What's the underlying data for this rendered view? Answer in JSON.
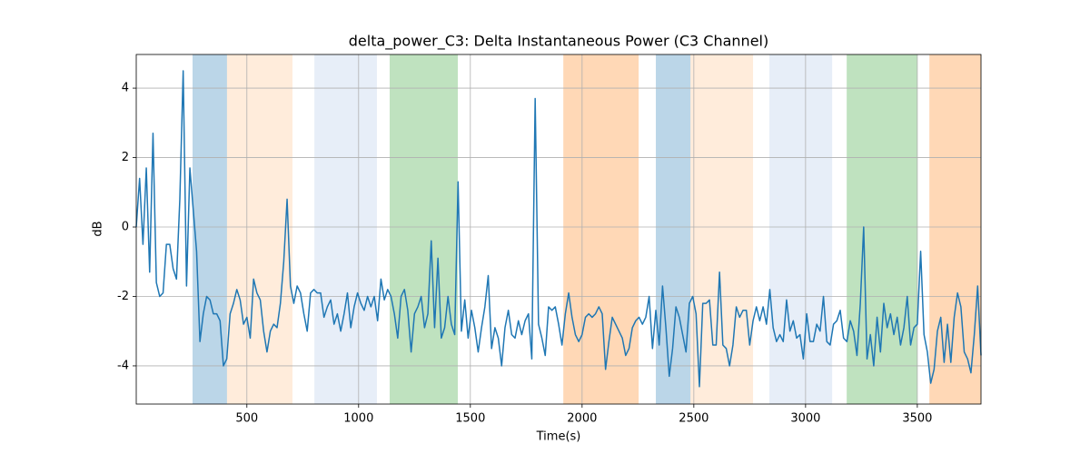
{
  "chart_data": {
    "type": "line",
    "title": "delta_power_C3: Delta Instantaneous Power (C3 Channel)",
    "xlabel": "Time(s)",
    "ylabel": "dB",
    "xlim": [
      5,
      3785
    ],
    "ylim": [
      -5.1,
      4.97
    ],
    "xticks": [
      500,
      1000,
      1500,
      2000,
      2500,
      3000,
      3500
    ],
    "yticks": [
      -4,
      -2,
      0,
      2,
      4
    ],
    "grid": true,
    "spans": [
      {
        "start": 257,
        "end": 411,
        "color": "#1f77b4",
        "opacity": 0.3
      },
      {
        "start": 411,
        "end": 704,
        "color": "#ff7f0e",
        "opacity": 0.15
      },
      {
        "start": 802,
        "end": 1082,
        "color": "#aec7e8",
        "opacity": 0.3
      },
      {
        "start": 1139,
        "end": 1444,
        "color": "#2ca02c",
        "opacity": 0.3
      },
      {
        "start": 1916,
        "end": 2253,
        "color": "#ff7f0e",
        "opacity": 0.3
      },
      {
        "start": 2330,
        "end": 2485,
        "color": "#1f77b4",
        "opacity": 0.3
      },
      {
        "start": 2485,
        "end": 2765,
        "color": "#ff7f0e",
        "opacity": 0.15
      },
      {
        "start": 2838,
        "end": 3119,
        "color": "#aec7e8",
        "opacity": 0.3
      },
      {
        "start": 3184,
        "end": 3501,
        "color": "#2ca02c",
        "opacity": 0.3
      },
      {
        "start": 3554,
        "end": 3785,
        "color": "#ff7f0e",
        "opacity": 0.3
      }
    ],
    "x": [
      5,
      20,
      35,
      50,
      65,
      80,
      95,
      110,
      125,
      140,
      155,
      170,
      185,
      200,
      215,
      230,
      245,
      260,
      275,
      290,
      305,
      320,
      335,
      350,
      365,
      380,
      395,
      410,
      425,
      440,
      455,
      470,
      485,
      500,
      515,
      530,
      545,
      560,
      575,
      590,
      605,
      620,
      635,
      650,
      665,
      680,
      695,
      710,
      725,
      740,
      755,
      770,
      785,
      800,
      815,
      830,
      845,
      860,
      875,
      890,
      905,
      920,
      935,
      950,
      965,
      980,
      995,
      1010,
      1025,
      1040,
      1055,
      1070,
      1085,
      1100,
      1115,
      1130,
      1145,
      1160,
      1175,
      1190,
      1205,
      1220,
      1235,
      1250,
      1265,
      1280,
      1295,
      1310,
      1325,
      1340,
      1355,
      1370,
      1385,
      1400,
      1415,
      1430,
      1445,
      1460,
      1475,
      1490,
      1505,
      1520,
      1535,
      1550,
      1565,
      1580,
      1595,
      1610,
      1625,
      1640,
      1655,
      1670,
      1685,
      1700,
      1715,
      1730,
      1745,
      1760,
      1775,
      1790,
      1805,
      1820,
      1835,
      1850,
      1865,
      1880,
      1895,
      1910,
      1925,
      1940,
      1955,
      1970,
      1985,
      2000,
      2015,
      2030,
      2045,
      2060,
      2075,
      2090,
      2105,
      2120,
      2135,
      2150,
      2165,
      2180,
      2195,
      2210,
      2225,
      2240,
      2255,
      2270,
      2285,
      2300,
      2315,
      2330,
      2345,
      2360,
      2375,
      2390,
      2405,
      2420,
      2435,
      2450,
      2465,
      2480,
      2495,
      2510,
      2525,
      2540,
      2555,
      2570,
      2585,
      2600,
      2615,
      2630,
      2645,
      2660,
      2675,
      2690,
      2705,
      2720,
      2735,
      2750,
      2765,
      2780,
      2795,
      2810,
      2825,
      2840,
      2855,
      2870,
      2885,
      2900,
      2915,
      2930,
      2945,
      2960,
      2975,
      2990,
      3005,
      3020,
      3035,
      3050,
      3065,
      3080,
      3095,
      3110,
      3125,
      3140,
      3155,
      3170,
      3185,
      3200,
      3215,
      3230,
      3245,
      3260,
      3275,
      3290,
      3305,
      3320,
      3335,
      3350,
      3365,
      3380,
      3395,
      3410,
      3425,
      3440,
      3455,
      3470,
      3485,
      3500,
      3515,
      3530,
      3545,
      3560,
      3575,
      3590,
      3605,
      3620,
      3635,
      3650,
      3665,
      3680,
      3695,
      3710,
      3725,
      3740,
      3755,
      3770,
      3785
    ],
    "series": [
      {
        "color": "#1f77b4",
        "values": [
          0.0,
          1.4,
          -0.5,
          1.7,
          -1.3,
          2.7,
          -1.6,
          -2.0,
          -1.9,
          -0.5,
          -0.5,
          -1.2,
          -1.5,
          0.8,
          4.5,
          -1.7,
          1.7,
          0.5,
          -0.7,
          -3.3,
          -2.5,
          -2.0,
          -2.1,
          -2.5,
          -2.5,
          -2.7,
          -4.0,
          -3.8,
          -2.5,
          -2.2,
          -1.8,
          -2.1,
          -2.8,
          -2.6,
          -3.2,
          -1.5,
          -1.9,
          -2.1,
          -3.0,
          -3.6,
          -3.0,
          -2.8,
          -2.9,
          -2.2,
          -1.0,
          0.8,
          -1.7,
          -2.2,
          -1.7,
          -1.9,
          -2.5,
          -3.0,
          -1.9,
          -1.8,
          -1.9,
          -1.9,
          -2.6,
          -2.3,
          -2.1,
          -2.8,
          -2.5,
          -3.0,
          -2.5,
          -1.9,
          -2.9,
          -2.3,
          -1.9,
          -2.2,
          -2.4,
          -2.0,
          -2.3,
          -2.0,
          -2.7,
          -1.5,
          -2.1,
          -1.8,
          -2.0,
          -2.5,
          -3.2,
          -2.0,
          -1.8,
          -2.4,
          -3.6,
          -2.5,
          -2.3,
          -2.0,
          -2.9,
          -2.5,
          -0.4,
          -2.9,
          -0.9,
          -3.2,
          -2.9,
          -2.0,
          -2.8,
          -3.1,
          1.3,
          -3.0,
          -2.1,
          -3.2,
          -2.4,
          -2.9,
          -3.6,
          -2.9,
          -2.3,
          -1.4,
          -3.5,
          -2.9,
          -3.2,
          -4.0,
          -2.9,
          -2.4,
          -3.1,
          -3.2,
          -2.7,
          -3.1,
          -2.7,
          -2.5,
          -3.8,
          3.7,
          -2.8,
          -3.2,
          -3.7,
          -2.3,
          -2.4,
          -2.3,
          -2.8,
          -3.4,
          -2.5,
          -1.9,
          -2.6,
          -3.1,
          -3.3,
          -3.1,
          -2.6,
          -2.5,
          -2.6,
          -2.5,
          -2.3,
          -2.5,
          -4.1,
          -3.3,
          -2.6,
          -2.8,
          -3.0,
          -3.2,
          -3.7,
          -3.5,
          -2.9,
          -2.7,
          -2.6,
          -2.8,
          -2.6,
          -2.0,
          -3.5,
          -2.4,
          -3.4,
          -1.7,
          -2.9,
          -4.3,
          -3.5,
          -2.3,
          -2.6,
          -3.1,
          -3.6,
          -2.2,
          -2.0,
          -2.5,
          -4.6,
          -2.2,
          -2.2,
          -2.1,
          -3.4,
          -3.4,
          -1.3,
          -3.4,
          -3.5,
          -4.0,
          -3.4,
          -2.3,
          -2.6,
          -2.4,
          -2.4,
          -3.4,
          -2.7,
          -2.3,
          -2.7,
          -2.3,
          -2.8,
          -1.8,
          -2.9,
          -3.3,
          -3.1,
          -3.3,
          -2.1,
          -3.0,
          -2.7,
          -3.2,
          -3.1,
          -3.8,
          -2.5,
          -3.3,
          -3.3,
          -2.8,
          -3.0,
          -2.0,
          -3.3,
          -3.4,
          -2.8,
          -2.7,
          -2.4,
          -3.2,
          -3.3,
          -2.7,
          -3.0,
          -3.7,
          -2.2,
          0.0,
          -3.8,
          -3.1,
          -4.0,
          -2.6,
          -3.6,
          -2.2,
          -2.9,
          -2.5,
          -3.1,
          -2.6,
          -3.4,
          -2.9,
          -2.0,
          -3.4,
          -2.9,
          -2.8,
          -0.7,
          -3.1,
          -3.6,
          -4.5,
          -4.1,
          -3.0,
          -2.6,
          -3.9,
          -2.8,
          -3.9,
          -2.6,
          -1.9,
          -2.3,
          -3.6,
          -3.8,
          -4.2,
          -3.1,
          -1.7,
          -3.7
        ]
      }
    ]
  }
}
